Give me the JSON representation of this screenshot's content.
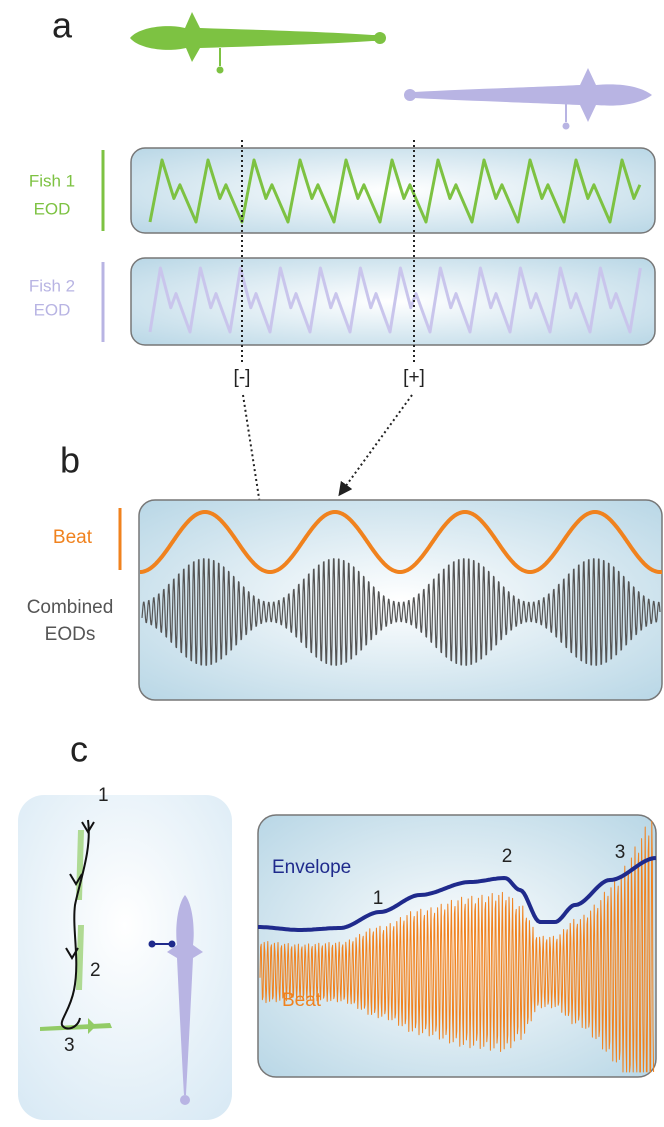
{
  "panel_a": {
    "label": "a",
    "fish1_label": [
      "Fish 1",
      "EOD"
    ],
    "fish2_label": [
      "Fish 2",
      "EOD"
    ],
    "markers": [
      "[-]",
      "[+]"
    ]
  },
  "panel_b": {
    "label": "b",
    "beat_label": "Beat",
    "combined_label": [
      "Combined",
      "EODs"
    ]
  },
  "panel_c": {
    "label": "c",
    "path_points": [
      "1",
      "2",
      "3"
    ],
    "envelope_label": "Envelope",
    "envelope_points": [
      "1",
      "2",
      "3"
    ],
    "beat_label": "Beat"
  }
}
